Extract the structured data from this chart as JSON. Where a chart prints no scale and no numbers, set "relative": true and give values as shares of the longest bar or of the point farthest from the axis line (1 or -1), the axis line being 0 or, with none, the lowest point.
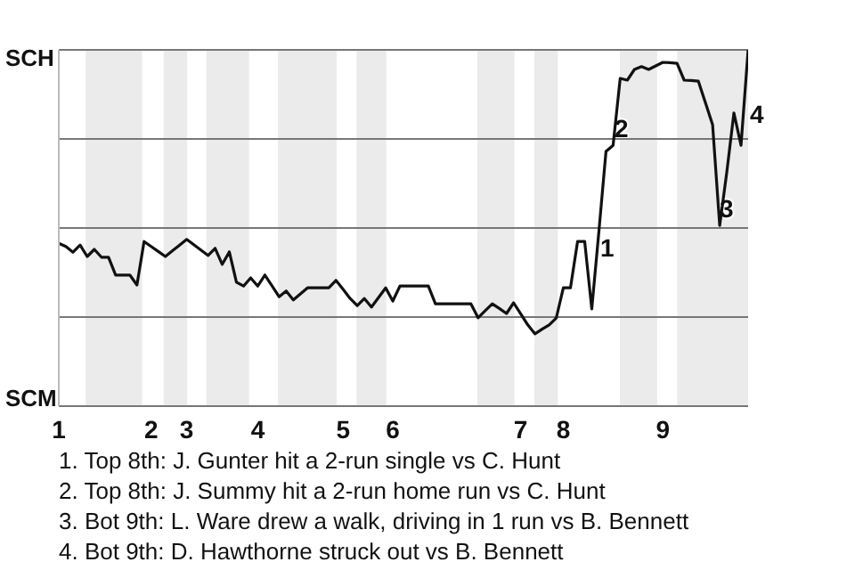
{
  "chart_data": {
    "type": "line",
    "relative": true,
    "categories": [
      "1",
      null,
      null,
      null,
      null,
      null,
      null,
      null,
      null,
      null,
      null,
      null,
      null,
      "2",
      null,
      null,
      null,
      null,
      "3",
      null,
      null,
      null,
      null,
      null,
      null,
      null,
      null,
      null,
      "4",
      null,
      null,
      null,
      null,
      null,
      null,
      null,
      null,
      null,
      null,
      null,
      "5",
      null,
      null,
      null,
      null,
      null,
      null,
      "6",
      null,
      null,
      null,
      null,
      null,
      null,
      null,
      null,
      null,
      null,
      null,
      null,
      null,
      null,
      null,
      null,
      null,
      "7",
      null,
      null,
      null,
      null,
      null,
      "8",
      null,
      null,
      null,
      null,
      null,
      null,
      null,
      null,
      null,
      null,
      null,
      null,
      null,
      "9",
      null,
      null,
      null,
      null,
      null,
      null,
      null,
      null,
      null,
      null,
      null,
      null
    ],
    "grid": "y",
    "marker": "none",
    "line_style": "solid",
    "series": [
      {
        "color": "#111111",
        "values": [
          0.457,
          0.448,
          0.432,
          0.452,
          0.42,
          0.44,
          0.418,
          0.418,
          0.368,
          0.368,
          0.368,
          0.34,
          0.462,
          0.448,
          0.434,
          0.42,
          0.436,
          0.452,
          0.468,
          0.453,
          0.438,
          0.423,
          0.443,
          0.398,
          0.433,
          0.348,
          0.337,
          0.36,
          0.337,
          0.368,
          0.338,
          0.307,
          0.323,
          0.298,
          0.315,
          0.332,
          0.332,
          0.332,
          0.332,
          0.353,
          0.328,
          0.302,
          0.282,
          0.302,
          0.278,
          0.305,
          0.332,
          0.295,
          0.337,
          0.337,
          0.337,
          0.337,
          0.337,
          0.287,
          0.287,
          0.287,
          0.287,
          0.287,
          0.287,
          0.248,
          0.268,
          0.287,
          0.274,
          0.26,
          0.29,
          0.259,
          0.228,
          0.203,
          0.216,
          0.228,
          0.247,
          0.332,
          0.332,
          0.462,
          0.462,
          0.273,
          0.49,
          0.715,
          0.732,
          0.92,
          0.915,
          0.945,
          0.953,
          0.945,
          0.955,
          0.965,
          0.964,
          0.962,
          0.915,
          0.914,
          0.912,
          0.851,
          0.79,
          0.507,
          0.657,
          0.823,
          0.732,
          1
        ]
      }
    ],
    "annotations": [
      "SCH",
      "SCM",
      "1",
      "2",
      "3",
      "4",
      "1. Top 8th: J. Gunter hit a 2-run single vs C. Hunt",
      "2. Top 8th: J. Summy hit a 2-run home run vs C. Hunt",
      "3. Bot 9th: L. Ware drew a walk, driving in 1 run vs B. Bennett",
      "4. Bot 9th: D. Hawthorne struck out vs B. Bennett"
    ]
  }
}
